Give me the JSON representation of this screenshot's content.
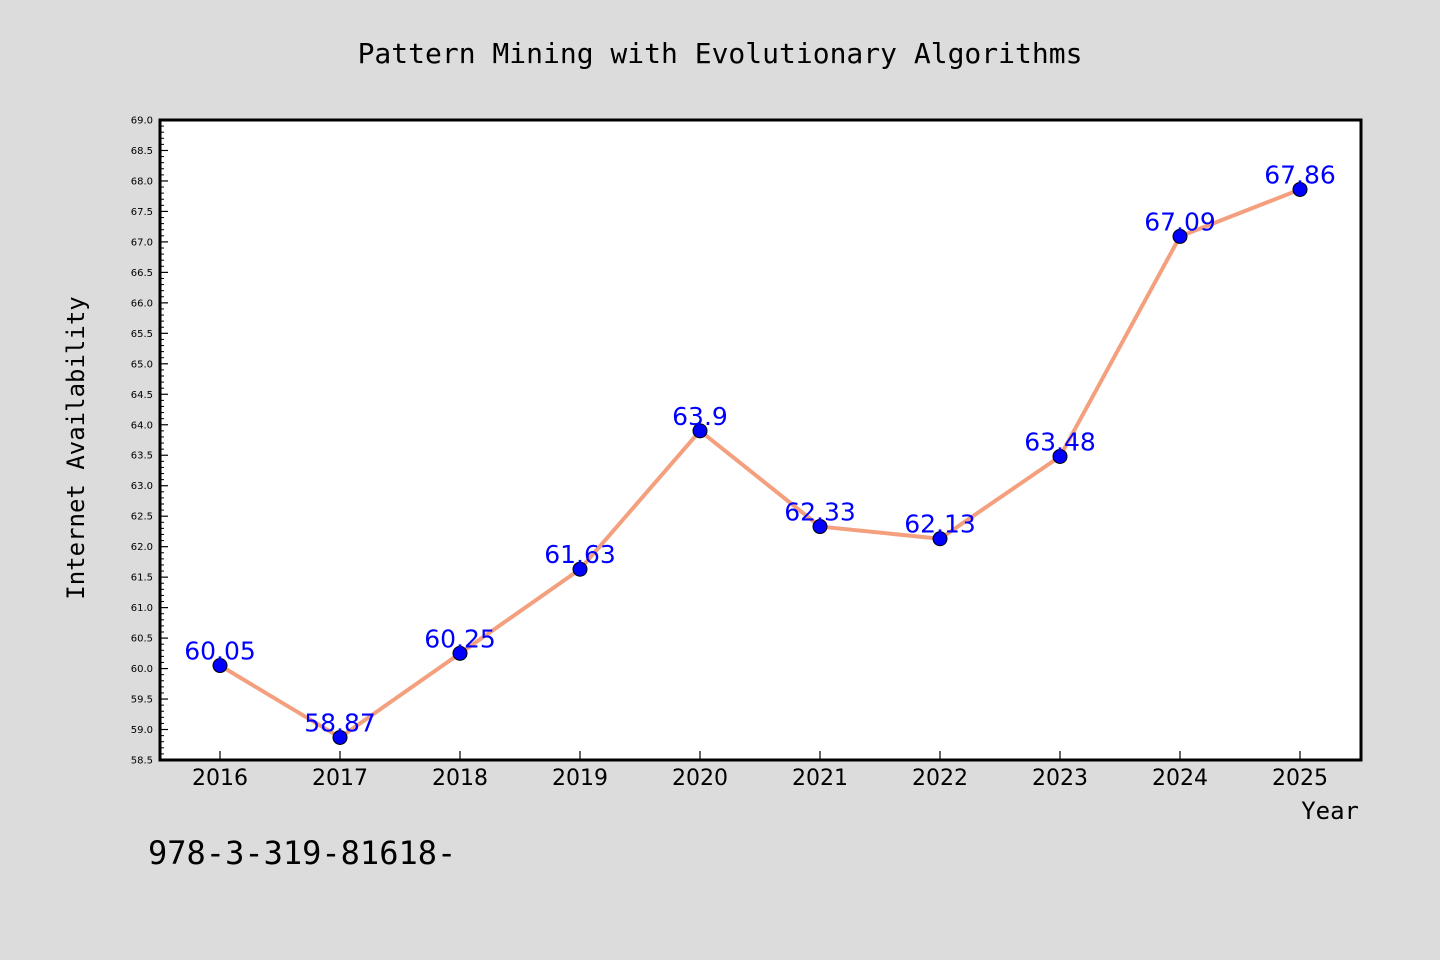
{
  "chart_data": {
    "type": "line",
    "title": "Pattern Mining with Evolutionary Algorithms",
    "xlabel": "Year",
    "ylabel": "Internet Availability",
    "categories": [
      "2016",
      "2017",
      "2018",
      "2019",
      "2020",
      "2021",
      "2022",
      "2023",
      "2024",
      "2025"
    ],
    "values": [
      60.05,
      58.87,
      60.25,
      61.63,
      63.9,
      62.33,
      62.13,
      63.48,
      67.09,
      67.86
    ],
    "data_labels": [
      "60.05",
      "58.87",
      "60.25",
      "61.63",
      "63.9",
      "62.33",
      "62.13",
      "63.48",
      "67.09",
      "67.86"
    ],
    "ylim": [
      58.5,
      69.0
    ],
    "yticks": [
      "58.5",
      "59.0",
      "59.5",
      "60.0",
      "60.5",
      "61.0",
      "61.5",
      "62.0",
      "62.5",
      "63.0",
      "63.5",
      "64.0",
      "64.5",
      "65.0",
      "65.5",
      "66.0",
      "66.5",
      "67.0",
      "67.5",
      "68.0",
      "68.5",
      "69.0"
    ],
    "grid": false,
    "line_color": "#f4a07f",
    "marker_color": "#0000ff",
    "label_color": "#0000ff",
    "plot_background": "#ffffff",
    "figure_background": "#dcdcdc"
  },
  "footnote": "978-3-319-81618-"
}
